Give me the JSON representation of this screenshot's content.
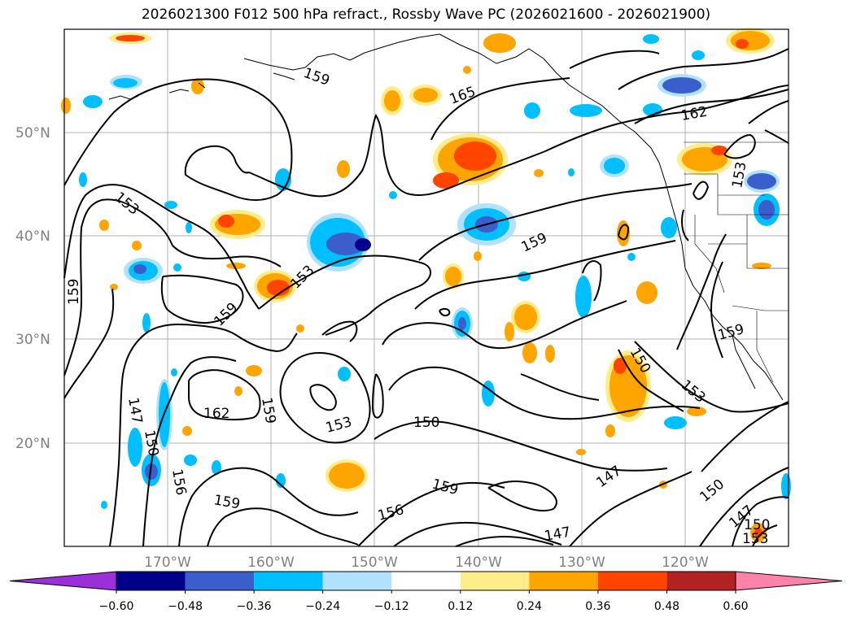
{
  "title": "2026021300 F012 500 hPa refract., Rossby Wave PC (2026021600 - 2026021900)",
  "map": {
    "lat_labels": [
      "50°N",
      "40°N",
      "30°N",
      "20°N"
    ],
    "lon_labels": [
      "170°W",
      "160°W",
      "150°W",
      "140°W",
      "130°W",
      "120°W"
    ],
    "contour_labels": [
      "159",
      "165",
      "162",
      "153",
      "159",
      "159",
      "153",
      "159",
      "162",
      "159",
      "153",
      "150",
      "147",
      "150",
      "156",
      "159",
      "156",
      "159",
      "147",
      "147",
      "150",
      "153",
      "159",
      "150",
      "147",
      "150",
      "153"
    ],
    "extent": {
      "lon": [
        -180,
        -110
      ],
      "lat": [
        10,
        60
      ]
    }
  },
  "colorbar": {
    "ticks": [
      "−0.60",
      "−0.48",
      "−0.36",
      "−0.24",
      "−0.12",
      "0.12",
      "0.24",
      "0.36",
      "0.48",
      "0.60"
    ],
    "colors": [
      "#9b30d9",
      "#00008b",
      "#3a5fcd",
      "#00bfff",
      "#b0e2ff",
      "#ffffff",
      "#ffec8b",
      "#ffa500",
      "#ff4500",
      "#b22222",
      "#ff82ab"
    ]
  }
}
